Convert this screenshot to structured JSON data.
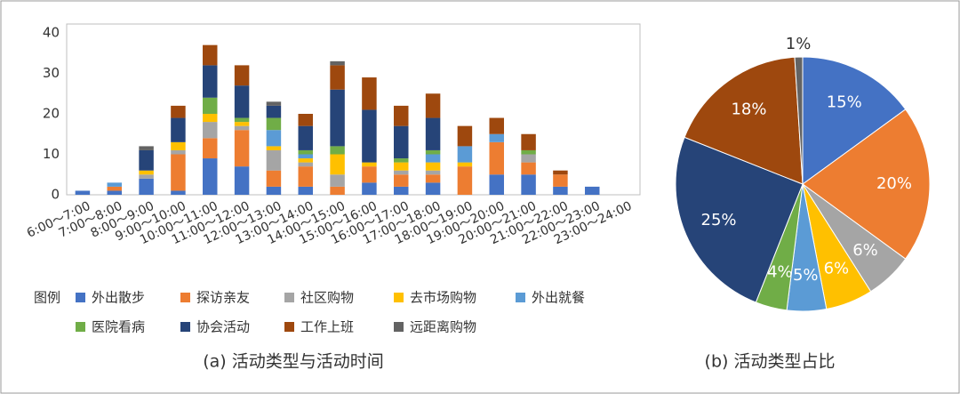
{
  "chart_data": [
    {
      "type": "stacked_bar",
      "caption": "(a) 活动类型与活动时间",
      "legend_title": "图例",
      "categories": [
        "6:00～7:00",
        "7:00～8:00",
        "8:00～9:00",
        "9:00～10:00",
        "10:00～11:00",
        "11:00～12:00",
        "12:00～13:00",
        "13:00～14:00",
        "14:00～15:00",
        "15:00～16:00",
        "16:00～17:00",
        "17:00～18:00",
        "18:00～19:00",
        "19:00～20:00",
        "20:00～21:00",
        "21:00～22:00",
        "22:00～23:00",
        "23:00～24:00"
      ],
      "series": [
        {
          "name": "外出散步",
          "color": "#4472c4",
          "values": [
            1,
            1,
            4,
            1,
            9,
            7,
            2,
            2,
            0,
            3,
            2,
            3,
            0,
            5,
            5,
            2,
            2,
            0
          ]
        },
        {
          "name": "探访亲友",
          "color": "#ed7d31",
          "values": [
            0,
            1,
            0,
            9,
            5,
            9,
            4,
            5,
            2,
            4,
            3,
            2,
            7,
            8,
            3,
            3,
            0,
            0
          ]
        },
        {
          "name": "社区购物",
          "color": "#a5a5a5",
          "values": [
            0,
            0,
            1,
            1,
            4,
            1,
            5,
            1,
            3,
            0,
            1,
            1,
            0,
            0,
            2,
            0,
            0,
            0
          ]
        },
        {
          "name": "去市场购物",
          "color": "#ffc000",
          "values": [
            0,
            0,
            1,
            2,
            2,
            1,
            1,
            1,
            5,
            1,
            2,
            2,
            1,
            0,
            0,
            0,
            0,
            0
          ]
        },
        {
          "name": "外出就餐",
          "color": "#5b9bd5",
          "values": [
            0,
            1,
            0,
            0,
            0,
            0,
            4,
            1,
            0,
            0,
            0,
            2,
            4,
            2,
            0,
            0,
            0,
            0
          ]
        },
        {
          "name": "医院看病",
          "color": "#70ad47",
          "values": [
            0,
            0,
            0,
            0,
            4,
            1,
            3,
            1,
            2,
            0,
            1,
            1,
            0,
            0,
            1,
            0,
            0,
            0
          ]
        },
        {
          "name": "协会活动",
          "color": "#264478",
          "values": [
            0,
            0,
            5,
            6,
            8,
            8,
            3,
            6,
            14,
            13,
            8,
            8,
            0,
            0,
            0,
            0,
            0,
            0
          ]
        },
        {
          "name": "工作上班",
          "color": "#9e480e",
          "values": [
            0,
            0,
            0,
            3,
            5,
            5,
            0,
            3,
            6,
            8,
            5,
            6,
            5,
            4,
            4,
            1,
            0,
            0
          ]
        },
        {
          "name": "远距离购物",
          "color": "#636363",
          "values": [
            0,
            0,
            1,
            0,
            0,
            0,
            1,
            0,
            1,
            0,
            0,
            0,
            0,
            0,
            0,
            0,
            0,
            0
          ]
        }
      ],
      "ylim": [
        0,
        40
      ],
      "yticks": [
        0,
        10,
        20,
        30,
        40
      ],
      "grid": false
    },
    {
      "type": "pie",
      "caption": "(b) 活动类型占比",
      "values": [
        15,
        20,
        6,
        6,
        5,
        4,
        25,
        18,
        1
      ],
      "value_labels": [
        "15%",
        "20%",
        "6%",
        "6%",
        "5%",
        "4%",
        "25%",
        "18%",
        "1%"
      ],
      "colors": [
        "#4472c4",
        "#ed7d31",
        "#a5a5a5",
        "#ffc000",
        "#5b9bd5",
        "#70ad47",
        "#264478",
        "#9e480e",
        "#636363"
      ]
    }
  ]
}
